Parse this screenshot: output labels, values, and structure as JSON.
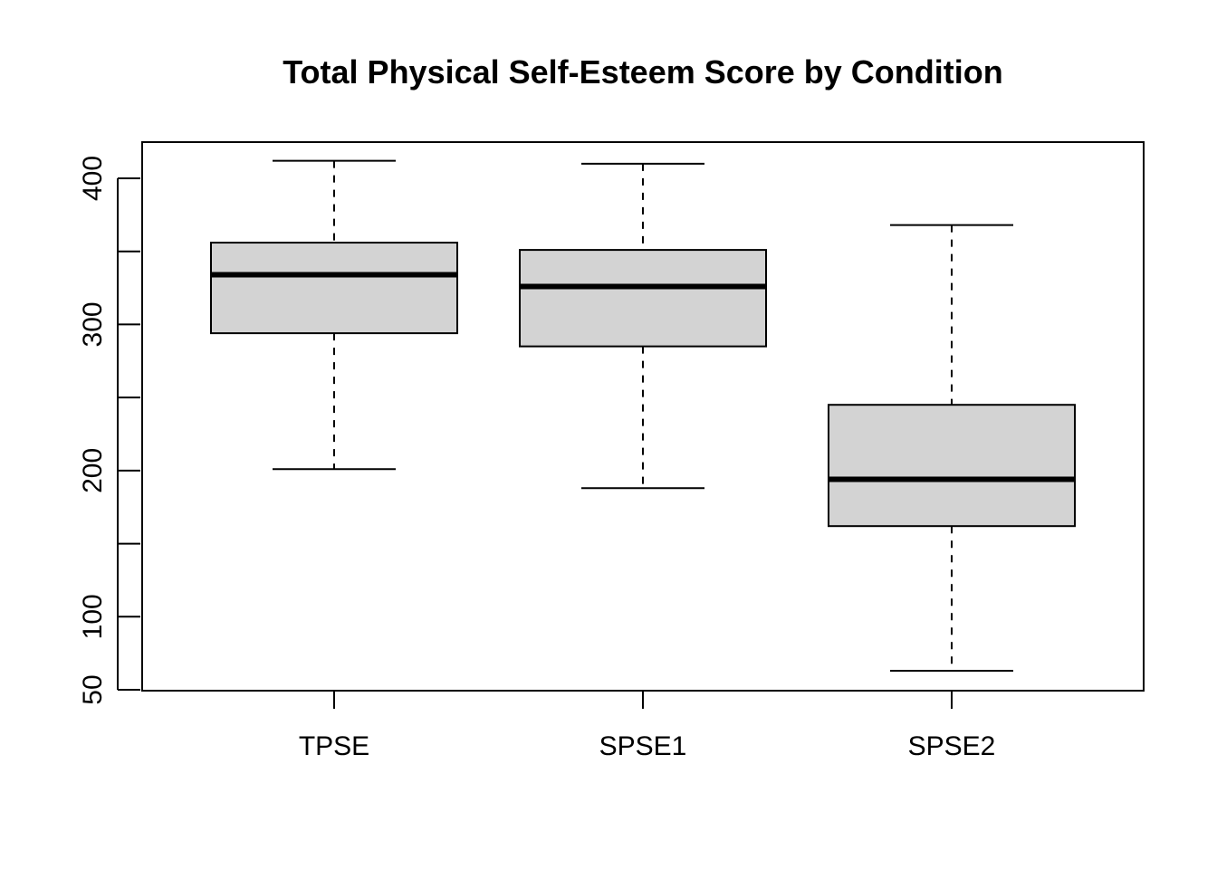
{
  "chart_data": {
    "type": "boxplot",
    "title": "Total Physical Self-Esteem Score by Condition",
    "xlabel": "",
    "ylabel": "",
    "categories": [
      "TPSE",
      "SPSE1",
      "SPSE2"
    ],
    "boxes": [
      {
        "category": "TPSE",
        "whisker_low": 201,
        "q1": 294,
        "median": 334,
        "q3": 356,
        "whisker_high": 412
      },
      {
        "category": "SPSE1",
        "whisker_low": 188,
        "q1": 285,
        "median": 326,
        "q3": 351,
        "whisker_high": 410
      },
      {
        "category": "SPSE2",
        "whisker_low": 63,
        "q1": 162,
        "median": 194,
        "q3": 245,
        "whisker_high": 368
      }
    ],
    "ylim": [
      50,
      425
    ],
    "y_major_ticks": [
      50,
      100,
      200,
      300,
      400
    ],
    "y_minor_ticks": [
      150,
      250,
      350
    ],
    "y_tick_labels": [
      "50",
      "100",
      "200",
      "300",
      "400"
    ],
    "grid": false,
    "box_fill": "#d3d3d3",
    "line_color": "#000000"
  }
}
